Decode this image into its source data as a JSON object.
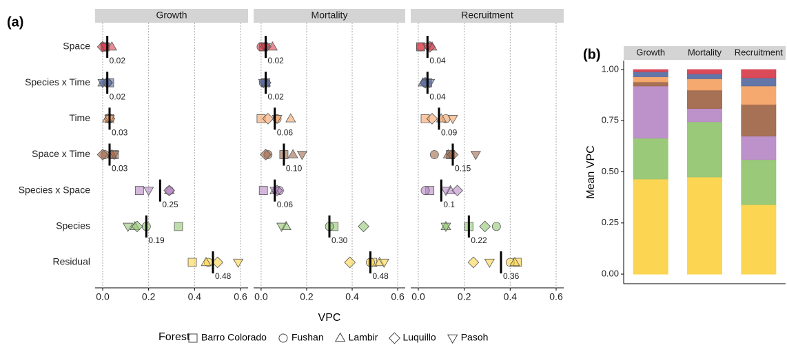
{
  "chart_data": [
    {
      "type": "dot",
      "label": "(a)",
      "x_label": "VPC",
      "categories": [
        "Space",
        "Species x Time",
        "Time",
        "Space x Time",
        "Species x Space",
        "Species",
        "Residual"
      ],
      "colors": [
        "#d9404f",
        "#5b6fa3",
        "#f4a467",
        "#a1694b",
        "#b98bc6",
        "#93c672",
        "#fcd34a"
      ],
      "xlim": [
        -0.033,
        0.633
      ],
      "xticks": [
        {
          "value": 0,
          "label": "0.0"
        },
        0.2,
        0.4,
        0.6
      ],
      "grid": true,
      "legend_title": "Forest",
      "forests": [
        {
          "name": "Barro Colorado",
          "shape": "square"
        },
        {
          "name": "Fushan",
          "shape": "circle"
        },
        {
          "name": "Lambir",
          "shape": "triangle"
        },
        {
          "name": "Luquillo",
          "shape": "diamond"
        },
        {
          "name": "Pasoh",
          "shape": "triangle-down"
        }
      ],
      "facets": [
        {
          "title": "Growth",
          "series": [
            {
              "values": [
                0.01,
                0.03,
                0.03,
                0.05,
                0.16,
                0.33,
                0.39
              ]
            },
            {
              "values": [
                0.01,
                0.02,
                0.03,
                0.01,
                0.29,
                0.19,
                0.46
              ]
            },
            {
              "values": [
                0.04,
                0.0,
                0.02,
                0.04,
                0.29,
                0.14,
                0.45
              ]
            },
            {
              "values": [
                0.0,
                0.02,
                0.03,
                0.0,
                0.29,
                0.15,
                0.5
              ]
            },
            {
              "values": [
                0.01,
                0.0,
                0.03,
                0.05,
                0.2,
                0.11,
                0.59
              ]
            }
          ],
          "means": [
            0.02,
            0.02,
            0.03,
            0.03,
            0.25,
            0.19,
            0.48
          ],
          "mean_labels": [
            "0.02",
            "0.02",
            "0.03",
            "0.03",
            "0.25",
            "0.19",
            "0.48"
          ]
        },
        {
          "title": "Mortality",
          "series": [
            {
              "values": [
                0.01,
                0.02,
                0.0,
                0.1,
                0.01,
                0.32,
                0.49
              ]
            },
            {
              "values": [
                0.0,
                0.01,
                0.07,
                0.03,
                0.08,
                0.3,
                0.48
              ]
            },
            {
              "values": [
                0.05,
                0.02,
                0.13,
                0.14,
                0.06,
                0.11,
                0.52
              ]
            },
            {
              "values": [
                0.02,
                0.02,
                0.03,
                0.02,
                0.07,
                0.45,
                0.39
              ]
            },
            {
              "values": [
                0.02,
                0.01,
                0.07,
                0.18,
                0.06,
                0.09,
                0.54
              ]
            }
          ],
          "means": [
            0.02,
            0.02,
            0.06,
            0.1,
            0.06,
            0.3,
            0.48
          ],
          "mean_labels": [
            "0.02",
            "0.02",
            "0.06",
            "0.10",
            "0.06",
            "0.30",
            "0.48"
          ]
        },
        {
          "title": "Recruitment",
          "series": [
            {
              "values": [
                0.01,
                0.04,
                0.03,
                0.14,
                0.05,
                0.22,
                0.43
              ]
            },
            {
              "values": [
                0.01,
                0.03,
                0.12,
                0.07,
                0.03,
                0.34,
                0.4
              ]
            },
            {
              "values": [
                0.06,
                0.02,
                0.1,
                0.13,
                0.14,
                0.12,
                0.42
              ]
            },
            {
              "values": [
                0.05,
                0.03,
                0.06,
                0.15,
                0.17,
                0.29,
                0.24
              ]
            },
            {
              "values": [
                0.04,
                0.05,
                0.15,
                0.25,
                0.12,
                0.12,
                0.31
              ]
            }
          ],
          "means": [
            0.04,
            0.04,
            0.09,
            0.15,
            0.1,
            0.22,
            0.36
          ],
          "mean_labels": [
            "0.04",
            "0.04",
            "0.09",
            "0.15",
            "0.1",
            "0.22",
            "0.36"
          ]
        }
      ]
    },
    {
      "type": "bar",
      "stacked": true,
      "label": "(b)",
      "y_label": "Mean VPC",
      "categories": [
        "Growth",
        "Mortality",
        "Recruitment"
      ],
      "ylim": [
        -0.047,
        1.044
      ],
      "yticks": [
        {
          "value": 0,
          "label": "0.00"
        },
        {
          "value": 0.25,
          "label": "0.25"
        },
        {
          "value": 0.5,
          "label": "0.50"
        },
        {
          "value": 0.75,
          "label": "0.75"
        },
        {
          "value": 1,
          "label": "1.00"
        }
      ],
      "series": [
        {
          "color": "#fcd34a",
          "values": [
            0.465,
            0.475,
            0.34
          ]
        },
        {
          "color": "#93c672",
          "values": [
            0.2,
            0.27,
            0.22
          ]
        },
        {
          "color": "#b98bc6",
          "values": [
            0.255,
            0.065,
            0.115
          ]
        },
        {
          "color": "#a1694b",
          "values": [
            0.02,
            0.09,
            0.155
          ]
        },
        {
          "color": "#f4a467",
          "values": [
            0.025,
            0.055,
            0.09
          ]
        },
        {
          "color": "#5b6fa3",
          "values": [
            0.025,
            0.025,
            0.04
          ]
        },
        {
          "color": "#d9404f",
          "values": [
            0.01,
            0.02,
            0.04
          ]
        }
      ]
    }
  ]
}
